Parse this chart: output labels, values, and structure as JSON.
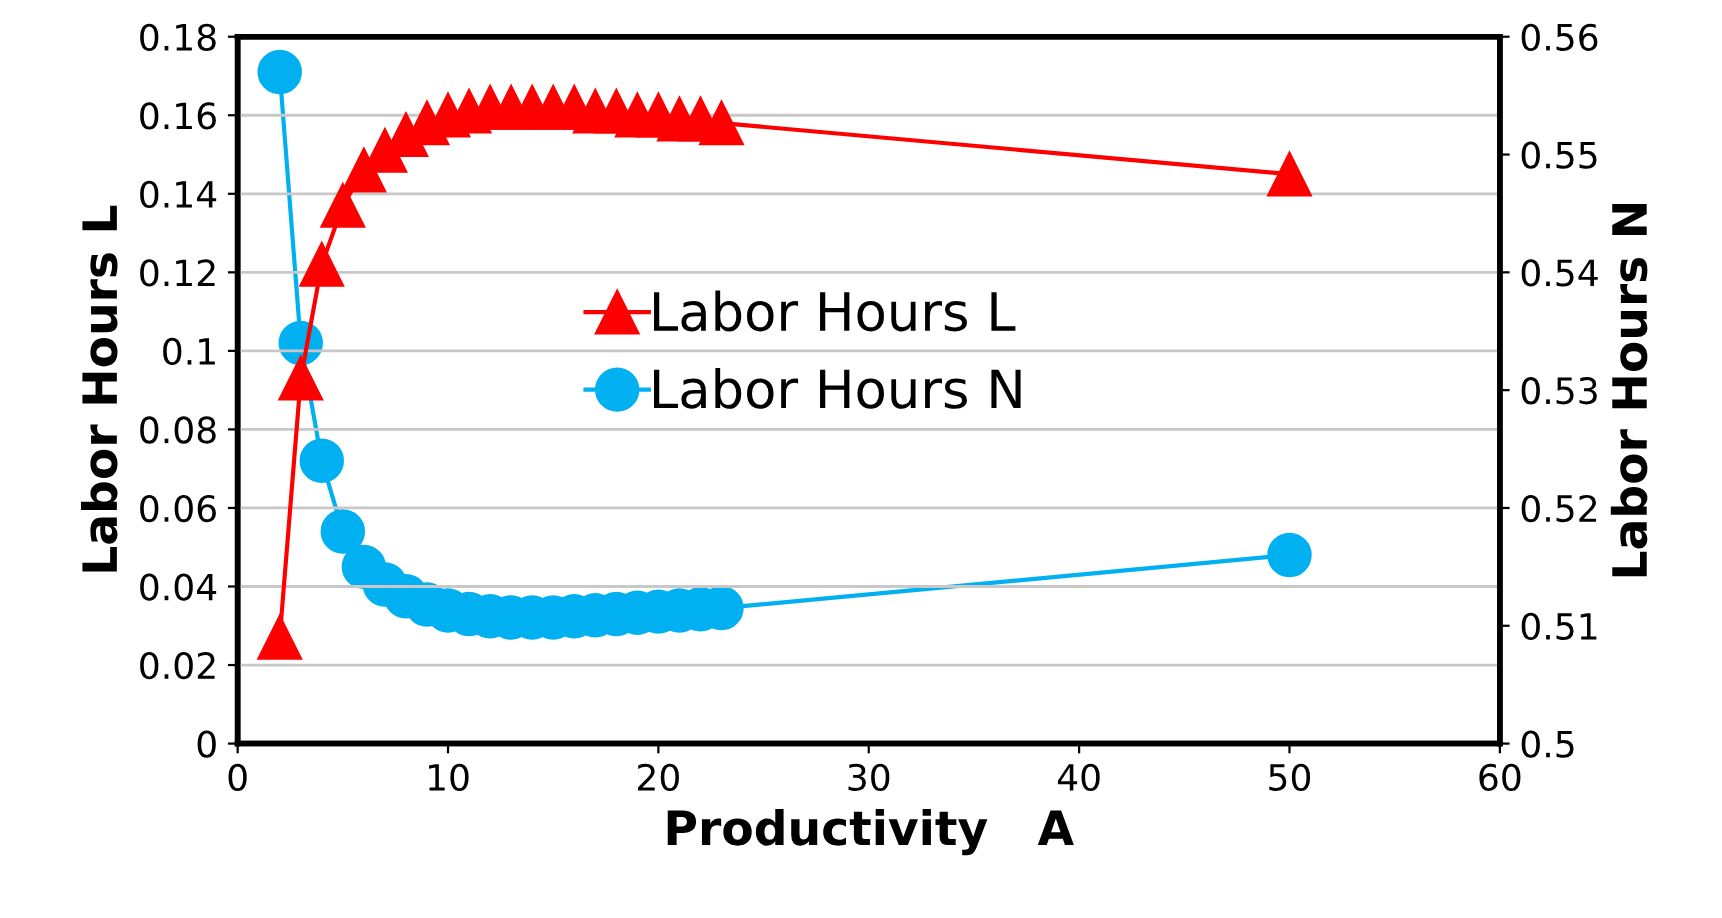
{
  "chart_data": {
    "type": "line",
    "xlabel": "Productivity   A",
    "ylabel": "Labor Hours L",
    "y2label": "Labor Hours N",
    "xlim": [
      0,
      60
    ],
    "xticks": [
      0,
      10,
      20,
      30,
      40,
      50,
      60
    ],
    "ylim": [
      0,
      0.18
    ],
    "yticks": [
      0,
      0.02,
      0.04,
      0.06,
      0.08,
      0.1,
      0.12,
      0.14,
      0.16,
      0.18
    ],
    "y2lim": [
      0.5,
      0.56
    ],
    "y2ticks": [
      0.5,
      0.51,
      0.52,
      0.53,
      0.54,
      0.55,
      0.56
    ],
    "grid": "y",
    "legend": "center",
    "x": [
      2,
      3,
      4,
      5,
      6,
      7,
      8,
      9,
      10,
      11,
      12,
      13,
      14,
      15,
      16,
      17,
      18,
      19,
      20,
      21,
      22,
      23,
      50
    ],
    "series": [
      {
        "name": "Labor Hours L",
        "color": "#ff0000",
        "marker": "triangle",
        "values": [
          0.027,
          0.093,
          0.122,
          0.137,
          0.146,
          0.151,
          0.155,
          0.158,
          0.16,
          0.161,
          0.162,
          0.162,
          0.162,
          0.162,
          0.162,
          0.161,
          0.161,
          0.16,
          0.16,
          0.159,
          0.159,
          0.158,
          0.145
        ]
      },
      {
        "name": "Labor Hours N",
        "color": "#00b0f0",
        "marker": "circle",
        "axis": "y2",
        "values": [
          0.557,
          0.534,
          0.524,
          0.518,
          0.515,
          0.5135,
          0.5125,
          0.5118,
          0.5113,
          0.511,
          0.5108,
          0.5107,
          0.5107,
          0.5107,
          0.5108,
          0.5109,
          0.511,
          0.5111,
          0.5112,
          0.5113,
          0.5114,
          0.5115,
          0.516
        ]
      }
    ]
  }
}
